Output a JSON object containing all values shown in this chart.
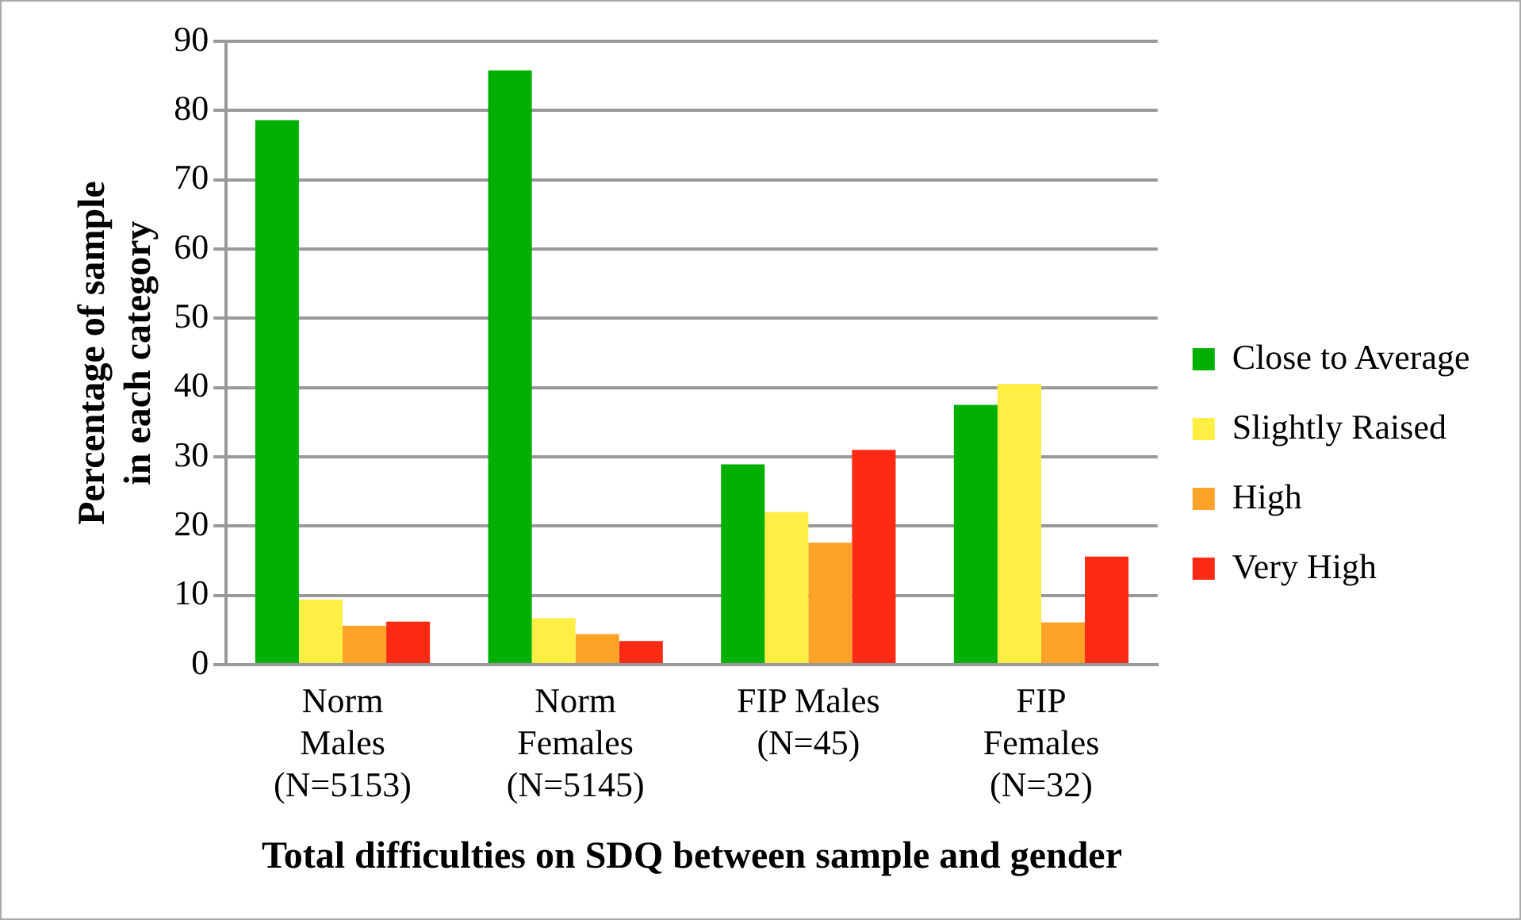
{
  "chart_data": {
    "type": "bar",
    "xlabel": "Total difficulties on SDQ between sample and gender",
    "ylabel": "Percentage of sample in each category",
    "categories": [
      "Norm\nMales\n(N=5153)",
      "Norm\nFemales\n(N=5145)",
      "FIP Males\n(N=45)",
      "FIP\nFemales\n(N=32)"
    ],
    "series": [
      {
        "name": "Close to Average",
        "color": "#00b000",
        "values": [
          78.6,
          85.8,
          28.9,
          37.5
        ]
      },
      {
        "name": "Slightly Raised",
        "color": "#ffee44",
        "values": [
          9.4,
          6.7,
          22,
          40.5
        ]
      },
      {
        "name": "High",
        "color": "#ffa228",
        "values": [
          5.6,
          4.4,
          17.6,
          6.1
        ]
      },
      {
        "name": "Very High",
        "color": "#ff2a14",
        "values": [
          6.2,
          3.4,
          31,
          15.6
        ]
      }
    ],
    "ylim": [
      0,
      90
    ],
    "yticks": [
      0,
      10,
      20,
      30,
      40,
      50,
      60,
      70,
      80,
      90
    ],
    "grid": "y",
    "legend": "right"
  }
}
